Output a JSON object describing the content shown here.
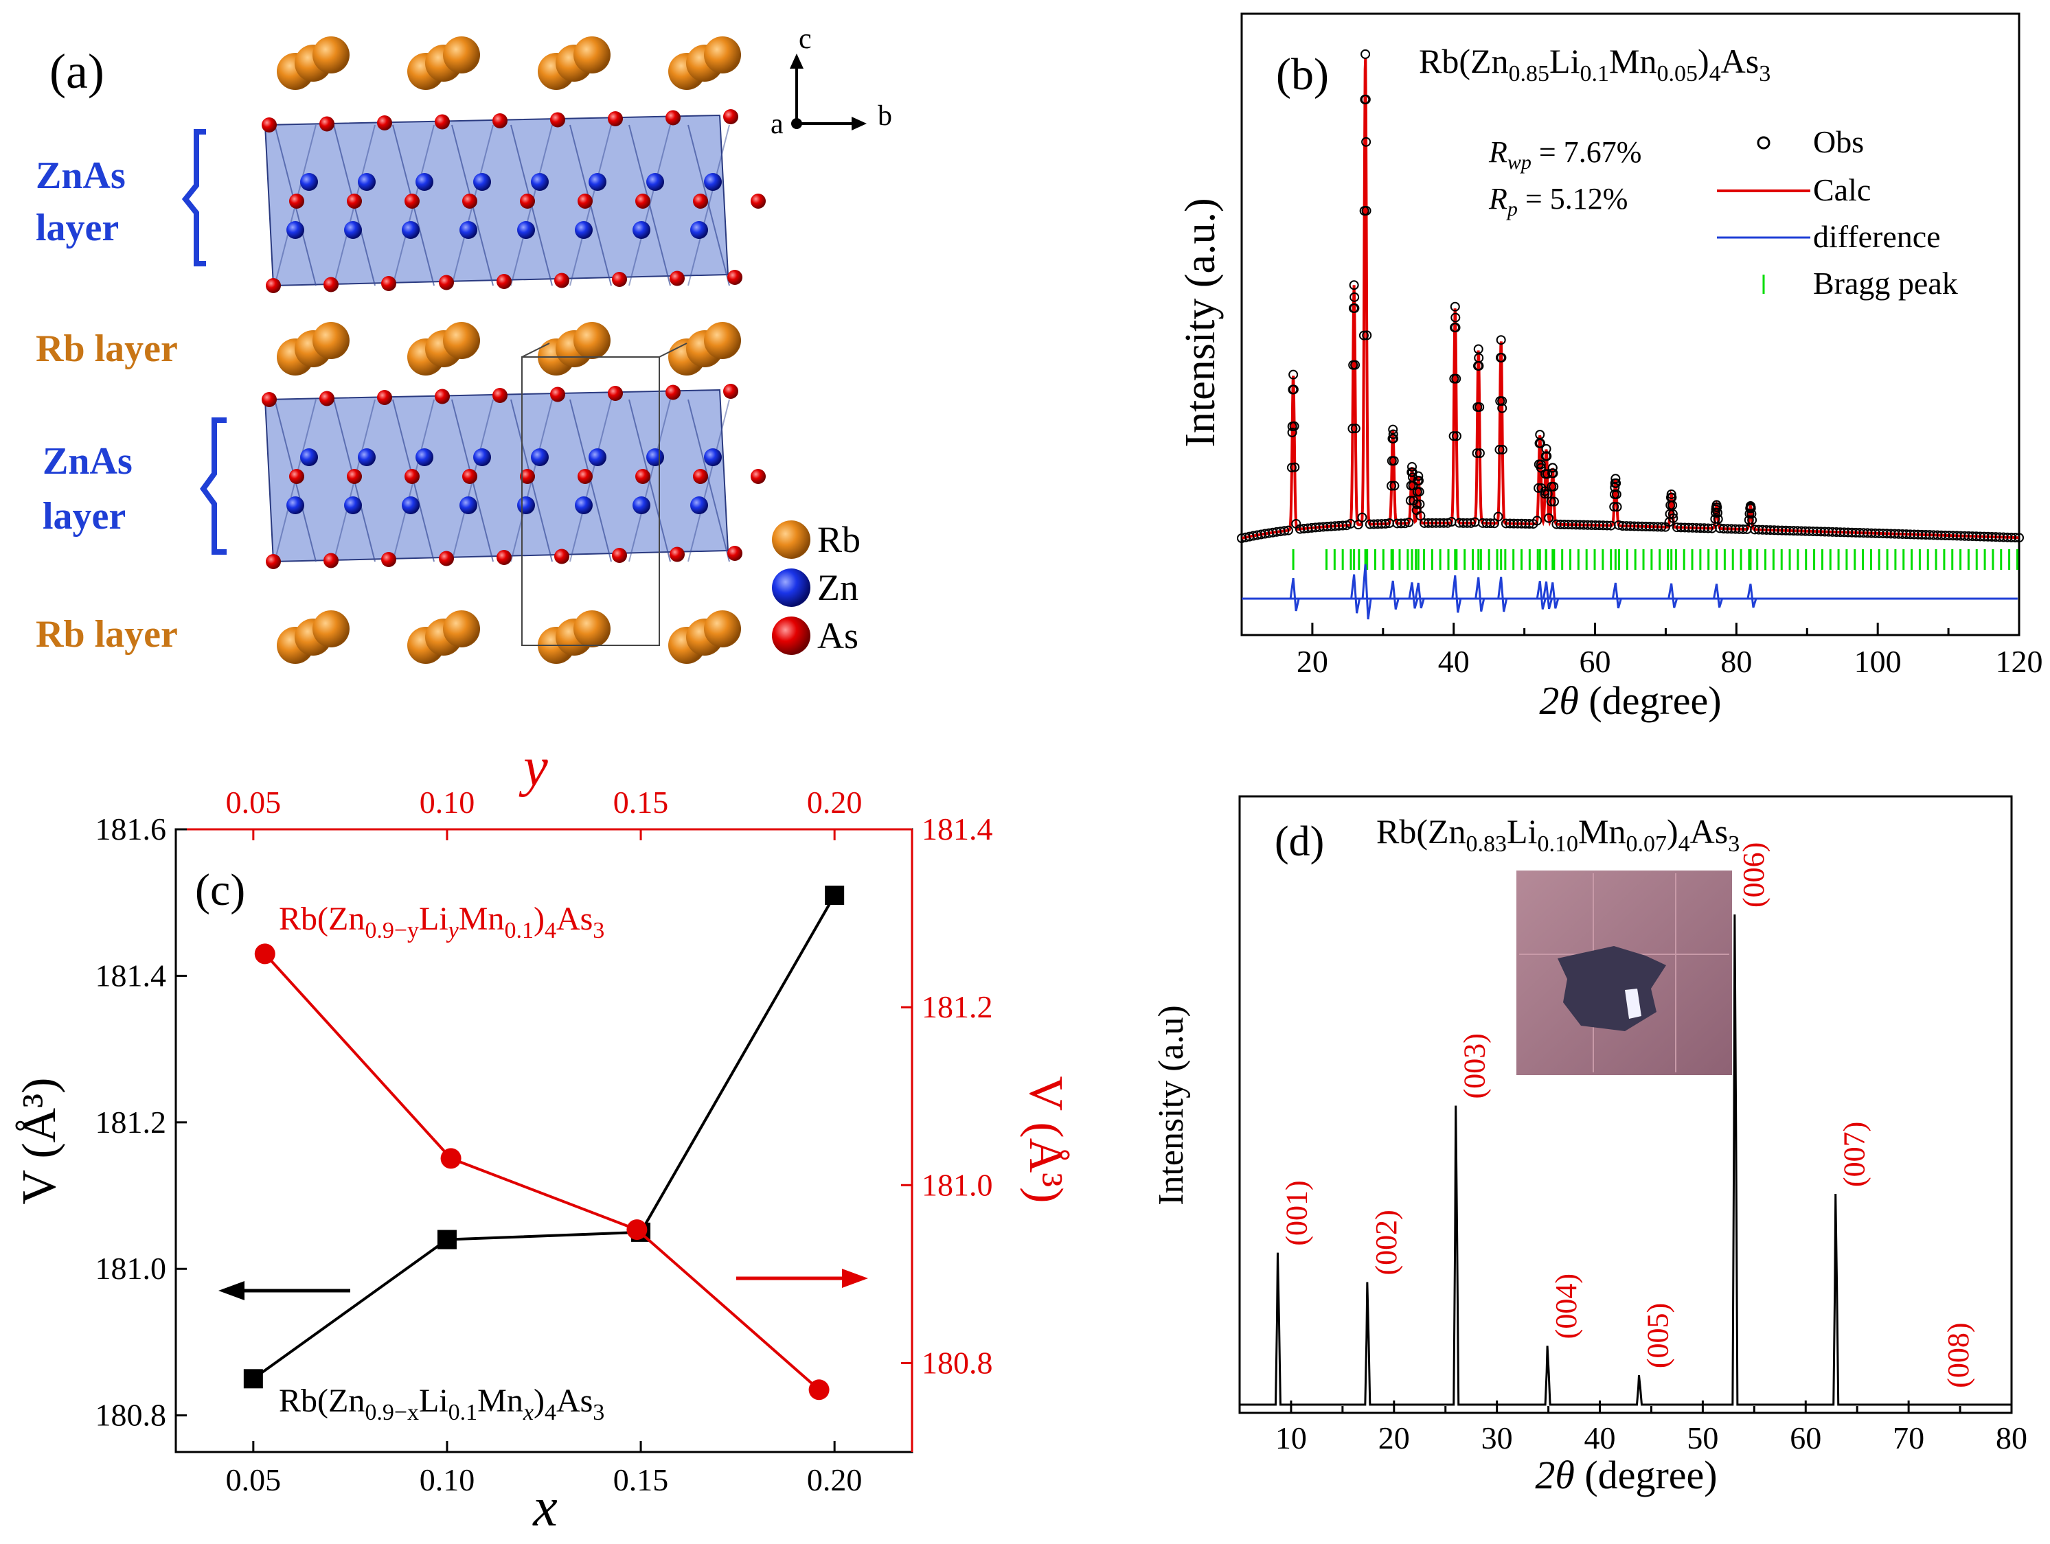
{
  "panel_a": {
    "label": "(a)",
    "layer_labels": {
      "znas_1": "ZnAs",
      "znas_1b": "layer",
      "rb_1": "Rb layer",
      "znas_2": "ZnAs",
      "znas_2b": "layer",
      "rb_2": "Rb layer"
    },
    "axes": {
      "c": "c",
      "a": "a",
      "b": "b"
    },
    "legend": {
      "rb": "Rb",
      "zn": "Zn",
      "as": "As"
    },
    "colors": {
      "rb": "#e07d10",
      "zn": "#1030e0",
      "as": "#e00000",
      "poly": "#3c5fc8"
    }
  },
  "panel_b": {
    "label": "(b)",
    "formula": {
      "a": "Rb(Zn",
      "s1": "0.85",
      "b": "Li",
      "s2": "0.1",
      "c": "Mn",
      "s3": "0.05",
      "d": ")",
      "s4": "4",
      "e": "As",
      "s5": "3"
    },
    "rwp": {
      "r": "R",
      "sub": "wp",
      "val": " = 7.67%"
    },
    "rp": {
      "r": "R",
      "sub": "p",
      "val": " = 5.12%"
    },
    "legend": {
      "obs": "Obs",
      "calc": "Calc",
      "diff": "difference",
      "bragg": "Bragg peak"
    },
    "ylabel": "Intensity (a.u.)",
    "xlabel_theta": "2θ",
    "xlabel_unit": " (degree)"
  },
  "panel_c": {
    "label": "(c)",
    "formula_red": {
      "a": "Rb(Zn",
      "s1": "0.9−y",
      "b": "Li",
      "s2": "y",
      "c": "Mn",
      "s3": "0.1",
      "d": ")",
      "s4": "4",
      "e": "As",
      "s5": "3"
    },
    "formula_black": {
      "a": "Rb(Zn",
      "s1": "0.9−x",
      "b": "Li",
      "s2": "0.1",
      "c": "Mn",
      "s3": "x",
      "d": ")",
      "s4": "4",
      "e": "As",
      "s5": "3"
    },
    "ylabel_left": "V (Å³)",
    "ylabel_right": "V (Å³)",
    "xlabel": "x",
    "x2label": "y"
  },
  "panel_d": {
    "label": "(d)",
    "formula": {
      "a": "Rb(Zn",
      "s1": "0.83",
      "b": "Li",
      "s2": "0.10",
      "c": "Mn",
      "s3": "0.07",
      "d": ")",
      "s4": "4",
      "e": "As",
      "s5": "3"
    },
    "ylabel": "Intensity (a.u)",
    "xlabel_theta": "2θ",
    "xlabel_unit": " (degree)"
  },
  "chart_data": [
    {
      "panel": "b",
      "type": "line",
      "title": "Rb(Zn0.85Li0.1Mn0.05)4As3",
      "xlabel": "2θ (degree)",
      "ylabel": "Intensity (a.u.)",
      "xlim": [
        10,
        120
      ],
      "xticks": [
        20,
        40,
        60,
        80,
        100,
        120
      ],
      "peaks_2theta": [
        17.3,
        25.9,
        27.5,
        31.4,
        34.1,
        35.0,
        40.2,
        43.5,
        46.7,
        52.2,
        53.1,
        54.0,
        62.9,
        70.8,
        77.2,
        82.0
      ],
      "peaks_relative_intensity": [
        0.33,
        0.51,
        1.0,
        0.2,
        0.12,
        0.1,
        0.46,
        0.37,
        0.39,
        0.19,
        0.16,
        0.12,
        0.1,
        0.07,
        0.05,
        0.05
      ],
      "series": [
        {
          "name": "Obs",
          "marker": "open-circle",
          "color": "#000000"
        },
        {
          "name": "Calc",
          "color": "#e00000"
        },
        {
          "name": "difference",
          "color": "#1f3fd6"
        },
        {
          "name": "Bragg peak",
          "marker": "tick",
          "color": "#00dd00"
        }
      ]
    },
    {
      "panel": "c",
      "type": "line",
      "xlabel": "x",
      "ylabel": "V (Å3)",
      "xlim": [
        0.03,
        0.22
      ],
      "ylim": [
        180.75,
        181.6
      ],
      "xticks": [
        0.05,
        0.1,
        0.15,
        0.2
      ],
      "xticklabels": [
        "0.05",
        "0.10",
        "0.15",
        "0.20"
      ],
      "yticks": [
        180.8,
        181.0,
        181.2,
        181.4,
        181.6
      ],
      "yticklabels": [
        "180.8",
        "181.0",
        "181.2",
        "181.4",
        "181.6"
      ],
      "x2label": "y",
      "x2ticks": [
        0.05,
        0.1,
        0.15,
        0.2
      ],
      "x2ticklabels": [
        "0.05",
        "0.10",
        "0.15",
        "0.20"
      ],
      "y2lim": [
        180.7,
        181.4
      ],
      "y2ticks": [
        180.8,
        181.0,
        181.2,
        181.4
      ],
      "y2ticklabels": [
        "180.8",
        "181.0",
        "181.2",
        "181.4"
      ],
      "series": [
        {
          "name": "Rb(Zn0.9−xLi0.1Mnx)4As3",
          "axis": "left",
          "marker": "square",
          "color": "#000000",
          "x": [
            0.05,
            0.1,
            0.15,
            0.2
          ],
          "values": [
            180.85,
            181.04,
            181.05,
            181.51
          ]
        },
        {
          "name": "Rb(Zn0.9−yLiyMn0.1)4As3",
          "axis": "right",
          "marker": "circle",
          "color": "#e00000",
          "x": [
            0.053,
            0.101,
            0.149,
            0.196
          ],
          "values": [
            181.26,
            181.03,
            180.95,
            180.77
          ]
        }
      ]
    },
    {
      "panel": "d",
      "type": "line",
      "title": "Rb(Zn0.83Li0.10Mn0.07)4As3",
      "xlabel": "2θ (degree)",
      "ylabel": "Intensity (a.u)",
      "xlim": [
        5,
        80
      ],
      "xticks": [
        10,
        20,
        30,
        40,
        50,
        60,
        70,
        80
      ],
      "peaks": [
        {
          "hkl": "(001)",
          "x": 8.7,
          "y": 0.31
        },
        {
          "hkl": "(002)",
          "x": 17.4,
          "y": 0.25
        },
        {
          "hkl": "(003)",
          "x": 26.0,
          "y": 0.61
        },
        {
          "hkl": "(004)",
          "x": 34.9,
          "y": 0.12
        },
        {
          "hkl": "(005)",
          "x": 43.8,
          "y": 0.06
        },
        {
          "hkl": "(006)",
          "x": 53.1,
          "y": 1.0
        },
        {
          "hkl": "(007)",
          "x": 62.9,
          "y": 0.43
        },
        {
          "hkl": "(008)",
          "x": 73.0,
          "y": 0.0
        }
      ]
    }
  ]
}
